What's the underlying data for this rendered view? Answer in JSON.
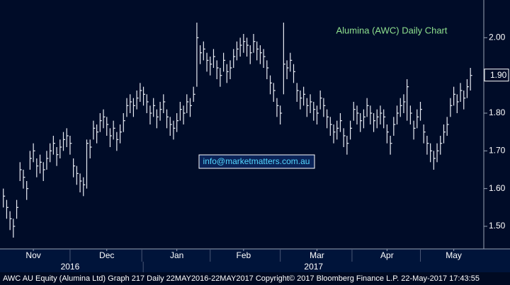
{
  "chart_data": {
    "type": "ohlc",
    "title": "Alumina (AWC) Daily Chart",
    "annotation": "info@marketmatters.com.au",
    "footer": "AWC AU Equity (Alumina Ltd) Graph 217  Daily 22MAY2016-22MAY2017  Copyright© 2017 Bloomberg Finance L.P.   22-May-2017 17:43:55",
    "color": "#e8ecf4",
    "ylim": [
      1.44,
      2.1
    ],
    "yticks": [
      {
        "value": 1.5,
        "label": "1.50"
      },
      {
        "value": 1.6,
        "label": "1.60"
      },
      {
        "value": 1.7,
        "label": "1.70"
      },
      {
        "value": 1.8,
        "label": "1.80"
      },
      {
        "value": 1.9,
        "label": "1.90"
      },
      {
        "value": 2.0,
        "label": "2.00"
      }
    ],
    "last_price": {
      "value": 1.9,
      "label": "1.90"
    },
    "xlim": [
      -1,
      144
    ],
    "xticks": [
      {
        "value": 9,
        "label": "Nov"
      },
      {
        "value": 31,
        "label": "Dec"
      },
      {
        "value": 52,
        "label": "Jan"
      },
      {
        "value": 72,
        "label": "Feb"
      },
      {
        "value": 94,
        "label": "Mar"
      },
      {
        "value": 115,
        "label": "Apr"
      },
      {
        "value": 135,
        "label": "May"
      }
    ],
    "year_labels": [
      {
        "value": 20,
        "label": "2016"
      },
      {
        "value": 93,
        "label": "2017"
      }
    ],
    "high": [
      1.6,
      1.57,
      1.54,
      1.52,
      1.57,
      1.67,
      1.65,
      1.62,
      1.7,
      1.72,
      1.68,
      1.69,
      1.67,
      1.7,
      1.72,
      1.74,
      1.71,
      1.73,
      1.75,
      1.76,
      1.74,
      1.68,
      1.66,
      1.64,
      1.63,
      1.73,
      1.73,
      1.78,
      1.77,
      1.8,
      1.81,
      1.79,
      1.76,
      1.78,
      1.75,
      1.77,
      1.8,
      1.84,
      1.85,
      1.84,
      1.86,
      1.88,
      1.87,
      1.85,
      1.82,
      1.84,
      1.81,
      1.83,
      1.85,
      1.81,
      1.79,
      1.78,
      1.8,
      1.83,
      1.82,
      1.85,
      1.84,
      1.87,
      2.04,
      1.98,
      1.99,
      1.96,
      1.95,
      1.97,
      1.94,
      1.92,
      1.96,
      1.93,
      1.94,
      1.97,
      1.99,
      2.0,
      2.01,
      2.0,
      1.98,
      2.01,
      1.99,
      1.98,
      1.97,
      1.94,
      1.9,
      1.88,
      1.84,
      1.82,
      2.04,
      1.94,
      1.96,
      1.93,
      1.88,
      1.86,
      1.87,
      1.84,
      1.85,
      1.83,
      1.82,
      1.86,
      1.84,
      1.81,
      1.79,
      1.77,
      1.78,
      1.8,
      1.76,
      1.74,
      1.78,
      1.83,
      1.82,
      1.8,
      1.81,
      1.84,
      1.82,
      1.8,
      1.81,
      1.82,
      1.81,
      1.77,
      1.74,
      1.79,
      1.82,
      1.84,
      1.85,
      1.89,
      1.82,
      1.78,
      1.81,
      1.83,
      1.77,
      1.74,
      1.72,
      1.7,
      1.72,
      1.74,
      1.77,
      1.79,
      1.84,
      1.87,
      1.85,
      1.88,
      1.86,
      1.89,
      1.92
    ],
    "low": [
      1.55,
      1.52,
      1.49,
      1.47,
      1.52,
      1.62,
      1.6,
      1.57,
      1.65,
      1.67,
      1.63,
      1.64,
      1.62,
      1.65,
      1.67,
      1.69,
      1.66,
      1.68,
      1.7,
      1.71,
      1.69,
      1.63,
      1.61,
      1.59,
      1.58,
      1.6,
      1.68,
      1.73,
      1.72,
      1.75,
      1.76,
      1.74,
      1.71,
      1.73,
      1.7,
      1.72,
      1.75,
      1.79,
      1.8,
      1.79,
      1.81,
      1.83,
      1.82,
      1.8,
      1.77,
      1.79,
      1.76,
      1.78,
      1.8,
      1.76,
      1.74,
      1.73,
      1.75,
      1.78,
      1.77,
      1.8,
      1.79,
      1.83,
      1.87,
      1.93,
      1.94,
      1.91,
      1.9,
      1.92,
      1.89,
      1.87,
      1.91,
      1.88,
      1.89,
      1.92,
      1.94,
      1.95,
      1.96,
      1.95,
      1.93,
      1.96,
      1.94,
      1.93,
      1.92,
      1.89,
      1.85,
      1.83,
      1.79,
      1.77,
      1.85,
      1.89,
      1.91,
      1.88,
      1.83,
      1.81,
      1.82,
      1.79,
      1.8,
      1.78,
      1.77,
      1.81,
      1.79,
      1.76,
      1.74,
      1.72,
      1.73,
      1.75,
      1.71,
      1.69,
      1.73,
      1.78,
      1.77,
      1.75,
      1.76,
      1.79,
      1.77,
      1.75,
      1.76,
      1.77,
      1.76,
      1.72,
      1.69,
      1.74,
      1.77,
      1.79,
      1.8,
      1.78,
      1.77,
      1.73,
      1.76,
      1.78,
      1.72,
      1.69,
      1.67,
      1.65,
      1.67,
      1.69,
      1.72,
      1.74,
      1.79,
      1.82,
      1.8,
      1.83,
      1.81,
      1.84,
      1.86
    ],
    "close": [
      1.58,
      1.55,
      1.52,
      1.5,
      1.55,
      1.65,
      1.63,
      1.6,
      1.68,
      1.7,
      1.66,
      1.67,
      1.65,
      1.68,
      1.7,
      1.72,
      1.69,
      1.71,
      1.73,
      1.74,
      1.72,
      1.66,
      1.64,
      1.62,
      1.61,
      1.72,
      1.71,
      1.76,
      1.75,
      1.78,
      1.79,
      1.77,
      1.74,
      1.76,
      1.73,
      1.75,
      1.78,
      1.82,
      1.83,
      1.82,
      1.84,
      1.86,
      1.85,
      1.83,
      1.8,
      1.82,
      1.79,
      1.81,
      1.83,
      1.79,
      1.77,
      1.76,
      1.78,
      1.81,
      1.8,
      1.83,
      1.82,
      1.85,
      2.0,
      1.96,
      1.97,
      1.94,
      1.93,
      1.95,
      1.92,
      1.9,
      1.94,
      1.91,
      1.92,
      1.95,
      1.97,
      1.98,
      1.99,
      1.98,
      1.96,
      1.99,
      1.97,
      1.96,
      1.95,
      1.92,
      1.88,
      1.86,
      1.82,
      1.8,
      1.93,
      1.92,
      1.94,
      1.91,
      1.86,
      1.84,
      1.85,
      1.82,
      1.83,
      1.81,
      1.8,
      1.84,
      1.82,
      1.79,
      1.77,
      1.75,
      1.76,
      1.78,
      1.74,
      1.72,
      1.76,
      1.81,
      1.8,
      1.78,
      1.79,
      1.82,
      1.8,
      1.78,
      1.79,
      1.8,
      1.79,
      1.75,
      1.72,
      1.77,
      1.8,
      1.82,
      1.83,
      1.87,
      1.8,
      1.76,
      1.79,
      1.81,
      1.75,
      1.72,
      1.7,
      1.68,
      1.7,
      1.72,
      1.75,
      1.77,
      1.82,
      1.85,
      1.83,
      1.86,
      1.84,
      1.87,
      1.9
    ]
  }
}
